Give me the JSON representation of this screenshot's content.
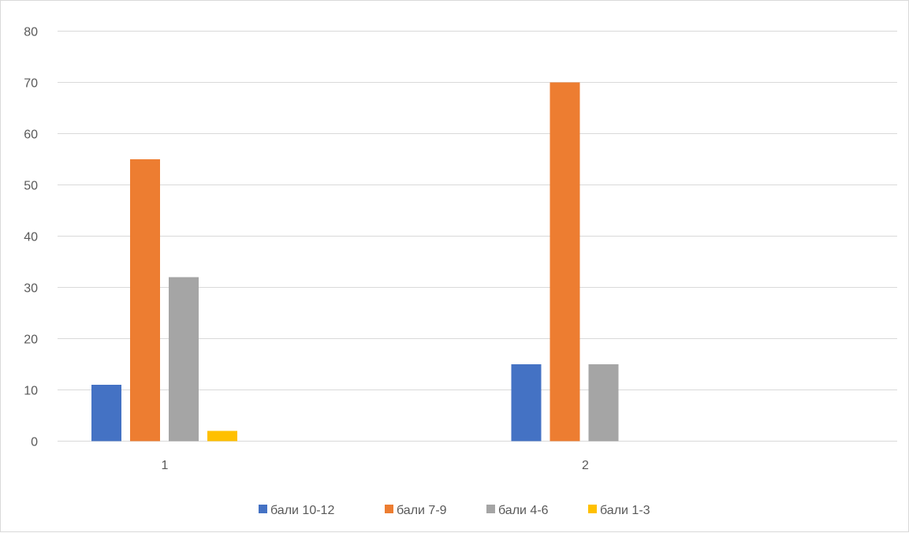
{
  "chart_data": {
    "type": "bar",
    "categories": [
      "1",
      "2"
    ],
    "series": [
      {
        "name": "бали 10-12",
        "color": "#4472c4",
        "values": [
          11,
          15
        ]
      },
      {
        "name": "бали 7-9",
        "color": "#ed7d31",
        "values": [
          55,
          70
        ]
      },
      {
        "name": "бали 4-6",
        "color": "#a5a5a5",
        "values": [
          32,
          15
        ]
      },
      {
        "name": "бали 1-3",
        "color": "#ffc000",
        "values": [
          2,
          0
        ]
      }
    ],
    "ylim": [
      0,
      80
    ],
    "yticks": [
      0,
      10,
      20,
      30,
      40,
      50,
      60,
      70,
      80
    ],
    "grid": true,
    "legend_position": "bottom"
  }
}
